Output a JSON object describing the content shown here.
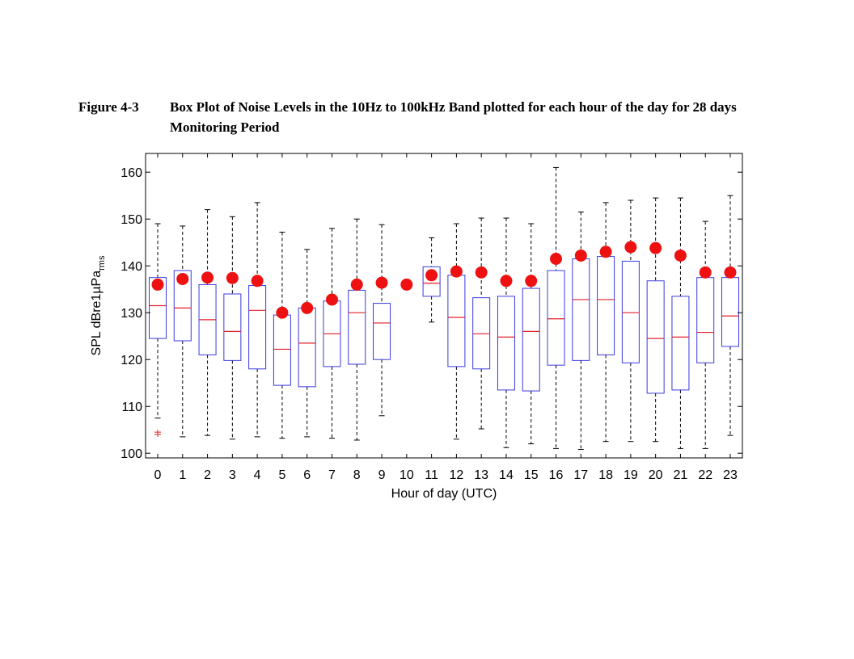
{
  "figure": {
    "label": "Figure 4-3",
    "title": "Box Plot of Noise Levels in the 10Hz to 100kHz Band plotted for each hour of the day for 28 days Monitoring Period"
  },
  "chart_data": {
    "type": "box",
    "xlabel": "Hour of day (UTC)",
    "ylabel": "SPL dBre1µPa",
    "ylabel_subscript": "rms",
    "categories": [
      "0",
      "1",
      "2",
      "3",
      "4",
      "5",
      "6",
      "7",
      "8",
      "9",
      "10",
      "11",
      "12",
      "13",
      "14",
      "15",
      "16",
      "17",
      "18",
      "19",
      "20",
      "21",
      "22",
      "23"
    ],
    "ylim": [
      99,
      164
    ],
    "yticks": [
      100,
      110,
      120,
      130,
      140,
      150,
      160
    ],
    "grid": false,
    "colors": {
      "box": "#3a3adf",
      "median": "#e0202a",
      "marker": "#ee1111",
      "whisker": "#000000",
      "outlier": "#e0202a"
    },
    "boxes": [
      {
        "hour": "0",
        "whisker_low": 107.5,
        "q1": 124.5,
        "median": 131.5,
        "q3": 137.5,
        "whisker_high": 149,
        "mean": 136,
        "outliers": [
          104,
          104.5
        ]
      },
      {
        "hour": "1",
        "whisker_low": 103.5,
        "q1": 124,
        "median": 131,
        "q3": 139,
        "whisker_high": 148.5,
        "mean": 137.2,
        "outliers": []
      },
      {
        "hour": "2",
        "whisker_low": 103.8,
        "q1": 121,
        "median": 128.5,
        "q3": 136,
        "whisker_high": 152,
        "mean": 137.5,
        "outliers": []
      },
      {
        "hour": "3",
        "whisker_low": 103,
        "q1": 119.8,
        "median": 126,
        "q3": 134,
        "whisker_high": 150.5,
        "mean": 137.4,
        "outliers": []
      },
      {
        "hour": "4",
        "whisker_low": 103.5,
        "q1": 118,
        "median": 130.5,
        "q3": 135.8,
        "whisker_high": 153.5,
        "mean": 136.8,
        "outliers": []
      },
      {
        "hour": "5",
        "whisker_low": 103.2,
        "q1": 114.5,
        "median": 122.2,
        "q3": 129.5,
        "whisker_high": 147.2,
        "mean": 130,
        "outliers": []
      },
      {
        "hour": "6",
        "whisker_low": 103.5,
        "q1": 114.2,
        "median": 123.5,
        "q3": 131,
        "whisker_high": 143.5,
        "mean": 131,
        "outliers": []
      },
      {
        "hour": "7",
        "whisker_low": 103.2,
        "q1": 118.5,
        "median": 125.5,
        "q3": 132.5,
        "whisker_high": 148,
        "mean": 132.8,
        "outliers": []
      },
      {
        "hour": "8",
        "whisker_low": 102.8,
        "q1": 119,
        "median": 130,
        "q3": 134.8,
        "whisker_high": 150,
        "mean": 136,
        "outliers": []
      },
      {
        "hour": "9",
        "whisker_low": 108,
        "q1": 120,
        "median": 127.8,
        "q3": 132,
        "whisker_high": 148.8,
        "mean": 136.4,
        "outliers": []
      },
      {
        "hour": "10",
        "whisker_low": null,
        "q1": null,
        "median": null,
        "q3": null,
        "whisker_high": null,
        "mean": 136,
        "outliers": []
      },
      {
        "hour": "11",
        "whisker_low": 128,
        "q1": 133.5,
        "median": 136.3,
        "q3": 139.8,
        "whisker_high": 146,
        "mean": 138,
        "outliers": []
      },
      {
        "hour": "12",
        "whisker_low": 103,
        "q1": 118.5,
        "median": 129,
        "q3": 138,
        "whisker_high": 149,
        "mean": 138.8,
        "outliers": []
      },
      {
        "hour": "13",
        "whisker_low": 105.2,
        "q1": 118,
        "median": 125.5,
        "q3": 133.2,
        "whisker_high": 150.2,
        "mean": 138.6,
        "outliers": []
      },
      {
        "hour": "14",
        "whisker_low": 101.2,
        "q1": 113.5,
        "median": 124.8,
        "q3": 133.5,
        "whisker_high": 150.2,
        "mean": 136.8,
        "outliers": []
      },
      {
        "hour": "15",
        "whisker_low": 102,
        "q1": 113.3,
        "median": 126,
        "q3": 135.2,
        "whisker_high": 149,
        "mean": 136.8,
        "outliers": []
      },
      {
        "hour": "16",
        "whisker_low": 101,
        "q1": 118.8,
        "median": 128.7,
        "q3": 139,
        "whisker_high": 161,
        "mean": 141.5,
        "outliers": []
      },
      {
        "hour": "17",
        "whisker_low": 100.8,
        "q1": 119.8,
        "median": 132.8,
        "q3": 141.5,
        "whisker_high": 151.5,
        "mean": 142.2,
        "outliers": []
      },
      {
        "hour": "18",
        "whisker_low": 102.5,
        "q1": 121,
        "median": 132.8,
        "q3": 142,
        "whisker_high": 153.5,
        "mean": 143,
        "outliers": []
      },
      {
        "hour": "19",
        "whisker_low": 102.5,
        "q1": 119.3,
        "median": 130,
        "q3": 141,
        "whisker_high": 154,
        "mean": 144,
        "outliers": []
      },
      {
        "hour": "20",
        "whisker_low": 102.5,
        "q1": 112.8,
        "median": 124.5,
        "q3": 136.8,
        "whisker_high": 154.5,
        "mean": 143.8,
        "outliers": []
      },
      {
        "hour": "21",
        "whisker_low": 101,
        "q1": 113.5,
        "median": 124.8,
        "q3": 133.5,
        "whisker_high": 154.5,
        "mean": 142.2,
        "outliers": []
      },
      {
        "hour": "22",
        "whisker_low": 101,
        "q1": 119.3,
        "median": 125.8,
        "q3": 137.5,
        "whisker_high": 149.5,
        "mean": 138.6,
        "outliers": []
      },
      {
        "hour": "23",
        "whisker_low": 103.8,
        "q1": 122.8,
        "median": 129.3,
        "q3": 137.5,
        "whisker_high": 155,
        "mean": 138.6,
        "outliers": []
      }
    ]
  }
}
